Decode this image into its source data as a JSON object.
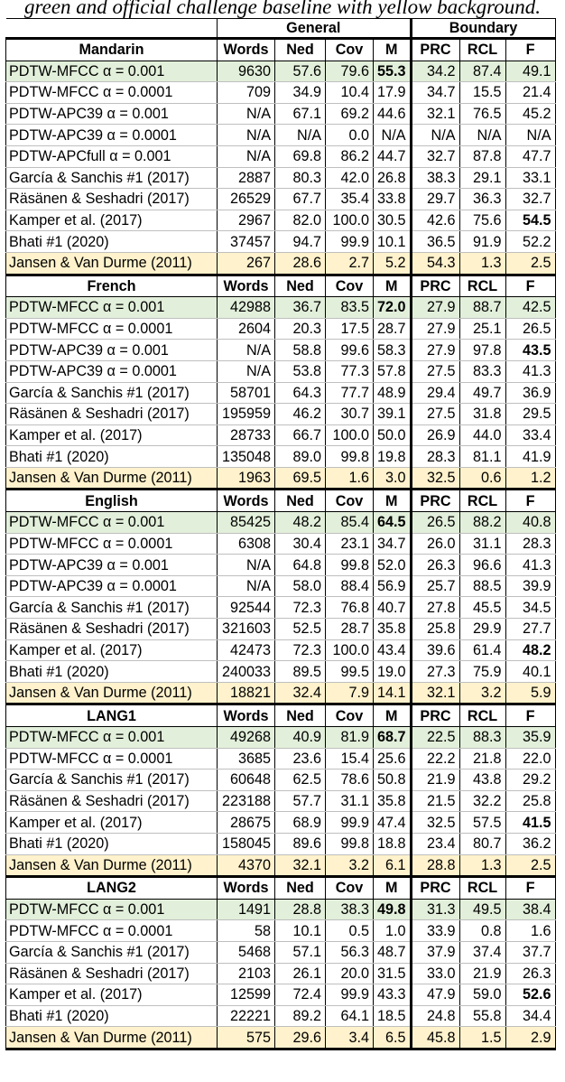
{
  "caption": "green and official challenge baseline with yellow background.",
  "group_headers": {
    "general": "General",
    "boundary": "Boundary"
  },
  "columns": [
    "Words",
    "Ned",
    "Cov",
    "M",
    "PRC",
    "RCL",
    "F"
  ],
  "sections": [
    {
      "language": "Mandarin",
      "rows": [
        {
          "name": "PDTW-MFCC α = 0.001",
          "v": [
            "9630",
            "57.6",
            "79.6",
            "55.3",
            "34.2",
            "87.4",
            "49.1"
          ],
          "bold": [
            3
          ],
          "hl": "green"
        },
        {
          "name": "PDTW-MFCC α = 0.0001",
          "v": [
            "709",
            "34.9",
            "10.4",
            "17.9",
            "34.7",
            "15.5",
            "21.4"
          ],
          "bold": []
        },
        {
          "name": "PDTW-APC39 α = 0.001",
          "v": [
            "N/A",
            "67.1",
            "69.2",
            "44.6",
            "32.1",
            "76.5",
            "45.2"
          ],
          "bold": []
        },
        {
          "name": "PDTW-APC39 α = 0.0001",
          "v": [
            "N/A",
            "N/A",
            "0.0",
            "N/A",
            "N/A",
            "N/A",
            "N/A"
          ],
          "bold": []
        },
        {
          "name": "PDTW-APCfull α = 0.001",
          "v": [
            "N/A",
            "69.8",
            "86.2",
            "44.7",
            "32.7",
            "87.8",
            "47.7"
          ],
          "bold": []
        },
        {
          "name": "García & Sanchis #1 (2017)",
          "v": [
            "2887",
            "80.3",
            "42.0",
            "26.8",
            "38.3",
            "29.1",
            "33.1"
          ],
          "bold": []
        },
        {
          "name": "Räsänen & Seshadri (2017)",
          "v": [
            "26529",
            "67.7",
            "35.4",
            "33.8",
            "29.7",
            "36.3",
            "32.7"
          ],
          "bold": []
        },
        {
          "name": "Kamper et al. (2017)",
          "v": [
            "2967",
            "82.0",
            "100.0",
            "30.5",
            "42.6",
            "75.6",
            "54.5"
          ],
          "bold": [
            6
          ]
        },
        {
          "name": "Bhati #1 (2020)",
          "v": [
            "37457",
            "94.7",
            "99.9",
            "10.1",
            "36.5",
            "91.9",
            "52.2"
          ],
          "bold": []
        },
        {
          "name": "Jansen & Van Durme (2011)",
          "v": [
            "267",
            "28.6",
            "2.7",
            "5.2",
            "54.3",
            "1.3",
            "2.5"
          ],
          "bold": [],
          "hl": "yellow"
        }
      ]
    },
    {
      "language": "French",
      "rows": [
        {
          "name": "PDTW-MFCC α = 0.001",
          "v": [
            "42988",
            "36.7",
            "83.5",
            "72.0",
            "27.9",
            "88.7",
            "42.5"
          ],
          "bold": [
            3
          ],
          "hl": "green"
        },
        {
          "name": "PDTW-MFCC α = 0.0001",
          "v": [
            "2604",
            "20.3",
            "17.5",
            "28.7",
            "27.9",
            "25.1",
            "26.5"
          ],
          "bold": []
        },
        {
          "name": "PDTW-APC39 α = 0.001",
          "v": [
            "N/A",
            "58.8",
            "99.6",
            "58.3",
            "27.9",
            "97.8",
            "43.5"
          ],
          "bold": [
            6
          ]
        },
        {
          "name": "PDTW-APC39 α = 0.0001",
          "v": [
            "N/A",
            "53.8",
            "77.3",
            "57.8",
            "27.5",
            "83.3",
            "41.3"
          ],
          "bold": []
        },
        {
          "name": "García & Sanchis #1 (2017)",
          "v": [
            "58701",
            "64.3",
            "77.7",
            "48.9",
            "29.4",
            "49.7",
            "36.9"
          ],
          "bold": []
        },
        {
          "name": "Räsänen & Seshadri (2017)",
          "v": [
            "195959",
            "46.2",
            "30.7",
            "39.1",
            "27.5",
            "31.8",
            "29.5"
          ],
          "bold": []
        },
        {
          "name": "Kamper et al. (2017)",
          "v": [
            "28733",
            "66.7",
            "100.0",
            "50.0",
            "26.9",
            "44.0",
            "33.4"
          ],
          "bold": []
        },
        {
          "name": "Bhati #1 (2020)",
          "v": [
            "135048",
            "89.0",
            "99.8",
            "19.8",
            "28.3",
            "81.1",
            "41.9"
          ],
          "bold": []
        },
        {
          "name": "Jansen & Van Durme (2011)",
          "v": [
            "1963",
            "69.5",
            "1.6",
            "3.0",
            "32.5",
            "0.6",
            "1.2"
          ],
          "bold": [],
          "hl": "yellow"
        }
      ]
    },
    {
      "language": "English",
      "rows": [
        {
          "name": "PDTW-MFCC α = 0.001",
          "v": [
            "85425",
            "48.2",
            "85.4",
            "64.5",
            "26.5",
            "88.2",
            "40.8"
          ],
          "bold": [
            3
          ],
          "hl": "green"
        },
        {
          "name": "PDTW-MFCC α = 0.0001",
          "v": [
            "6308",
            "30.4",
            "23.1",
            "34.7",
            "26.0",
            "31.1",
            "28.3"
          ],
          "bold": []
        },
        {
          "name": "PDTW-APC39 α = 0.001",
          "v": [
            "N/A",
            "64.8",
            "99.8",
            "52.0",
            "26.3",
            "96.6",
            "41.3"
          ],
          "bold": []
        },
        {
          "name": "PDTW-APC39 α = 0.0001",
          "v": [
            "N/A",
            "58.0",
            "88.4",
            "56.9",
            "25.7",
            "88.5",
            "39.9"
          ],
          "bold": []
        },
        {
          "name": "García & Sanchis #1 (2017)",
          "v": [
            "92544",
            "72.3",
            "76.8",
            "40.7",
            "27.8",
            "45.5",
            "34.5"
          ],
          "bold": []
        },
        {
          "name": "Räsänen & Seshadri (2017)",
          "v": [
            "321603",
            "52.5",
            "28.7",
            "35.8",
            "25.8",
            "29.9",
            "27.7"
          ],
          "bold": []
        },
        {
          "name": "Kamper et al. (2017)",
          "v": [
            "42473",
            "72.3",
            "100.0",
            "43.4",
            "39.6",
            "61.4",
            "48.2"
          ],
          "bold": [
            6
          ]
        },
        {
          "name": "Bhati #1 (2020)",
          "v": [
            "240033",
            "89.5",
            "99.5",
            "19.0",
            "27.3",
            "75.9",
            "40.1"
          ],
          "bold": []
        },
        {
          "name": "Jansen & Van Durme (2011)",
          "v": [
            "18821",
            "32.4",
            "7.9",
            "14.1",
            "32.1",
            "3.2",
            "5.9"
          ],
          "bold": [],
          "hl": "yellow"
        }
      ]
    },
    {
      "language": "LANG1",
      "rows": [
        {
          "name": "PDTW-MFCC α = 0.001",
          "v": [
            "49268",
            "40.9",
            "81.9",
            "68.7",
            "22.5",
            "88.3",
            "35.9"
          ],
          "bold": [
            3
          ],
          "hl": "green"
        },
        {
          "name": "PDTW-MFCC α = 0.0001",
          "v": [
            "3685",
            "23.6",
            "15.4",
            "25.6",
            "22.2",
            "21.8",
            "22.0"
          ],
          "bold": []
        },
        {
          "name": "García & Sanchis #1 (2017)",
          "v": [
            "60648",
            "62.5",
            "78.6",
            "50.8",
            "21.9",
            "43.8",
            "29.2"
          ],
          "bold": []
        },
        {
          "name": "Räsänen & Seshadri (2017)",
          "v": [
            "223188",
            "57.7",
            "31.1",
            "35.8",
            "21.5",
            "32.2",
            "25.8"
          ],
          "bold": []
        },
        {
          "name": "Kamper et al. (2017)",
          "v": [
            "28675",
            "68.9",
            "99.9",
            "47.4",
            "32.5",
            "57.5",
            "41.5"
          ],
          "bold": [
            6
          ]
        },
        {
          "name": "Bhati #1 (2020)",
          "v": [
            "158045",
            "89.6",
            "99.8",
            "18.8",
            "23.4",
            "80.7",
            "36.2"
          ],
          "bold": []
        },
        {
          "name": "Jansen & Van Durme (2011)",
          "v": [
            "4370",
            "32.1",
            "3.2",
            "6.1",
            "28.8",
            "1.3",
            "2.5"
          ],
          "bold": [],
          "hl": "yellow"
        }
      ]
    },
    {
      "language": "LANG2",
      "rows": [
        {
          "name": "PDTW-MFCC α = 0.001",
          "v": [
            "1491",
            "28.8",
            "38.3",
            "49.8",
            "31.3",
            "49.5",
            "38.4"
          ],
          "bold": [
            3
          ],
          "hl": "green"
        },
        {
          "name": "PDTW-MFCC α = 0.0001",
          "v": [
            "58",
            "10.1",
            "0.5",
            "1.0",
            "33.9",
            "0.8",
            "1.6"
          ],
          "bold": []
        },
        {
          "name": "García & Sanchis #1 (2017)",
          "v": [
            "5468",
            "57.1",
            "56.3",
            "48.7",
            "37.9",
            "37.4",
            "37.7"
          ],
          "bold": []
        },
        {
          "name": "Räsänen & Seshadri (2017)",
          "v": [
            "2103",
            "26.1",
            "20.0",
            "31.5",
            "33.0",
            "21.9",
            "26.3"
          ],
          "bold": []
        },
        {
          "name": "Kamper et al. (2017)",
          "v": [
            "12599",
            "72.4",
            "99.9",
            "43.3",
            "47.9",
            "59.0",
            "52.6"
          ],
          "bold": [
            6
          ]
        },
        {
          "name": "Bhati #1 (2020)",
          "v": [
            "22221",
            "89.2",
            "64.1",
            "18.5",
            "24.8",
            "55.8",
            "34.4"
          ],
          "bold": []
        },
        {
          "name": "Jansen & Van Durme (2011)",
          "v": [
            "575",
            "29.6",
            "3.4",
            "6.5",
            "45.8",
            "1.5",
            "2.9"
          ],
          "bold": [],
          "hl": "yellow"
        }
      ]
    }
  ]
}
